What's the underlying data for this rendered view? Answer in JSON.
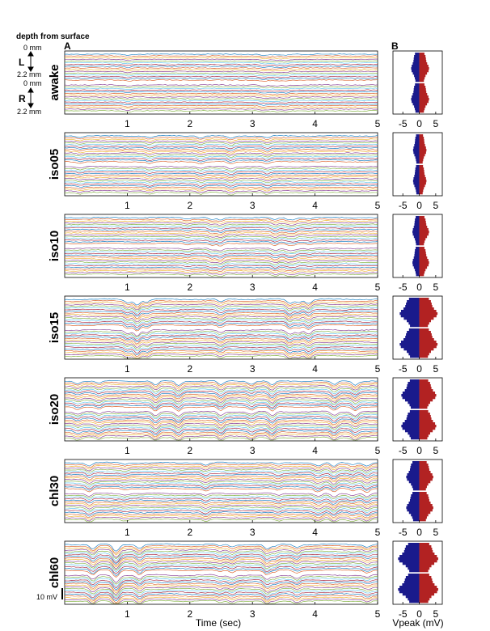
{
  "header": {
    "depth_title": "depth from surface",
    "panel_a": "A",
    "panel_b": "B",
    "top_depth": "0 mm",
    "bottom_depth": "2.2 mm",
    "left_hem": "L",
    "right_hem": "R"
  },
  "scale_bar_label": "10 mV",
  "colors": {
    "trace": [
      "#0072bd",
      "#d95319",
      "#edb120",
      "#7e2f8e",
      "#77ac30",
      "#4dbeee",
      "#a2142f"
    ],
    "left_bar": "#1a1a8c",
    "right_bar": "#b22222"
  },
  "chart_data": [
    {
      "type": "line",
      "panel": "A",
      "title": "",
      "xlabel": "Time (sec)",
      "x_ticks": [
        1,
        2,
        3,
        4,
        5
      ],
      "xlim": [
        0,
        5
      ],
      "conditions": [
        {
          "name": "awake",
          "activity": 0.25
        },
        {
          "name": "iso05",
          "activity": 0.45
        },
        {
          "name": "iso10",
          "activity": 0.55
        },
        {
          "name": "iso15",
          "activity": 0.85
        },
        {
          "name": "iso20",
          "activity": 0.9
        },
        {
          "name": "chl30",
          "activity": 0.8
        },
        {
          "name": "chl60",
          "activity": 1.0
        }
      ],
      "channels_per_hemisphere": 16,
      "depth_range_mm": [
        0,
        2.2
      ]
    },
    {
      "type": "bar",
      "panel": "B",
      "xlabel": "Vpeak (mV)",
      "x_ticks": [
        -5,
        0,
        5
      ],
      "xlim": [
        -8,
        7
      ],
      "series": [
        {
          "name": "awake",
          "left_half_width": 2.5,
          "right_half_width": 3.0
        },
        {
          "name": "iso05",
          "left_half_width": 1.9,
          "right_half_width": 2.2
        },
        {
          "name": "iso10",
          "left_half_width": 2.1,
          "right_half_width": 3.0
        },
        {
          "name": "iso15",
          "left_half_width": 6.0,
          "right_half_width": 5.6
        },
        {
          "name": "iso20",
          "left_half_width": 5.5,
          "right_half_width": 5.2
        },
        {
          "name": "chl30",
          "left_half_width": 4.0,
          "right_half_width": 4.3
        },
        {
          "name": "chl60",
          "left_half_width": 6.5,
          "right_half_width": 5.8
        }
      ]
    }
  ]
}
